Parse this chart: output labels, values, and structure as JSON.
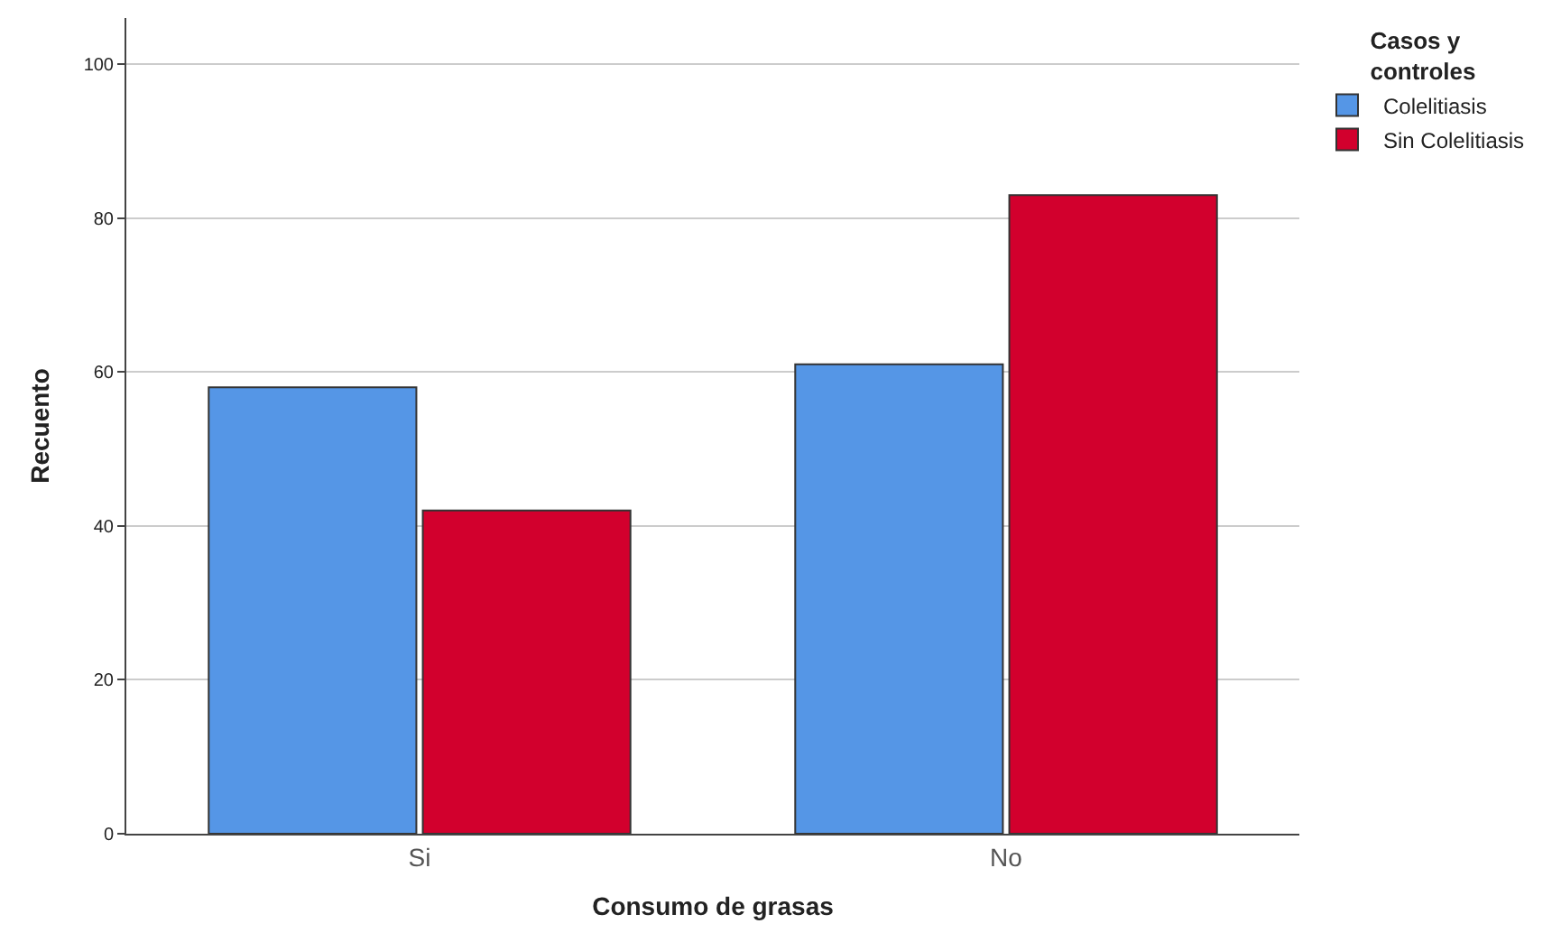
{
  "chart_data": {
    "type": "bar",
    "xlabel": "Consumo de grasas",
    "ylabel": "Recuento",
    "legend_title": "Casos y controles",
    "categories": [
      "Si",
      "No"
    ],
    "series": [
      {
        "name": "Colelitiasis",
        "color": "#5596e6",
        "values": [
          58,
          61
        ]
      },
      {
        "name": "Sin Colelitiasis",
        "color": "#d2002d",
        "values": [
          42,
          83
        ]
      }
    ],
    "ylim": [
      0,
      106
    ],
    "yticks": [
      0,
      20,
      40,
      60,
      80,
      100
    ],
    "grid": "y",
    "legend": "top right"
  }
}
